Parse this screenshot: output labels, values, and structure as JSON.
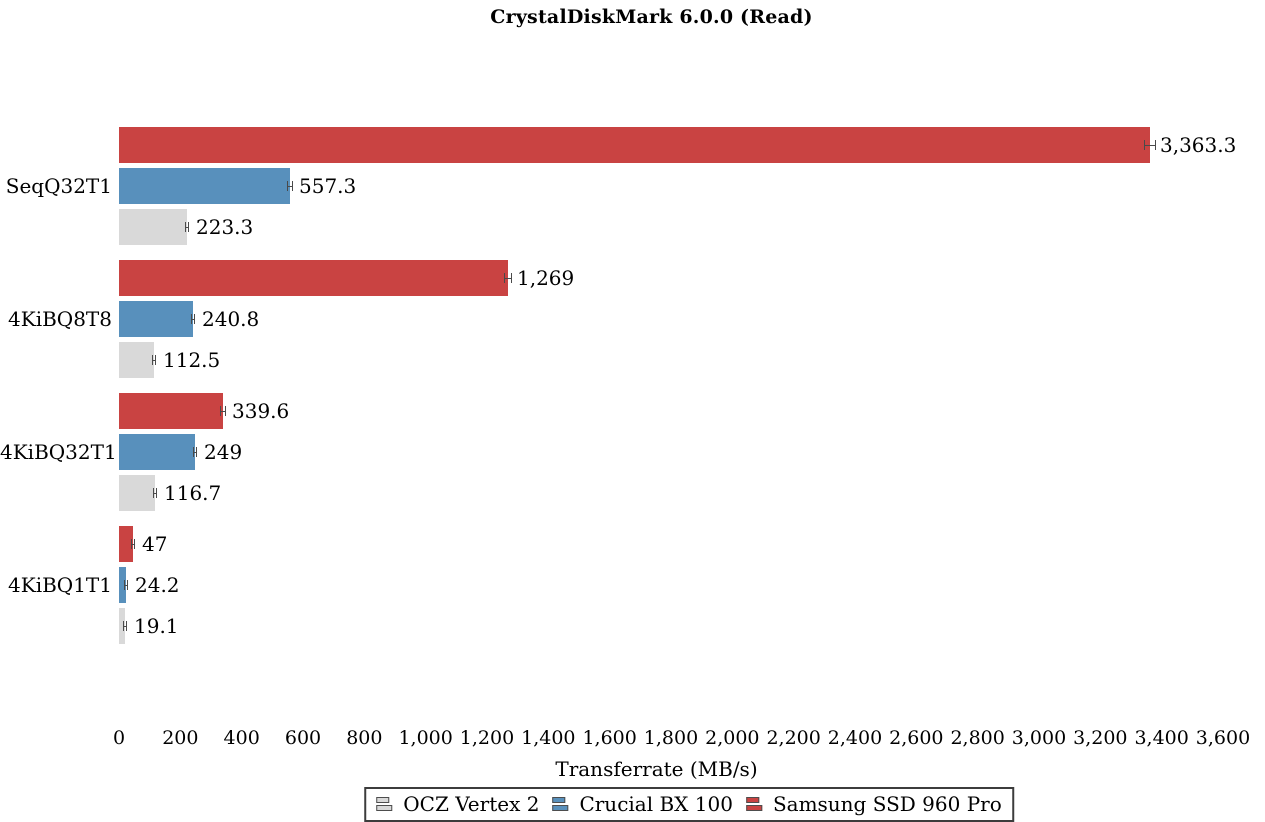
{
  "page": {
    "background": "#ffffff",
    "text_color": "#000000"
  },
  "chart_data": {
    "type": "bar",
    "orientation": "horizontal",
    "title": "CrystalDiskMark 6.0.0 (Read)",
    "xlabel": "Transferrate (MB/s)",
    "xlim": [
      0,
      3600
    ],
    "tick_step": 200,
    "tick_labels": [
      "0",
      "200",
      "400",
      "600",
      "800",
      "1,000",
      "1,200",
      "1,400",
      "1,600",
      "1,800",
      "2,000",
      "2,200",
      "2,400",
      "2,600",
      "2,800",
      "3,000",
      "3,200",
      "3,400",
      "3,600"
    ],
    "grid": false,
    "legend_position": "bottom-center",
    "categories": [
      "SeqQ32T1",
      "4KiBQ8T8",
      "4KiBQ32T1",
      "4KiBQ1T1"
    ],
    "bar_order_top_to_bottom": [
      "Samsung SSD 960 Pro",
      "Crucial BX 100",
      "OCZ Vertex 2"
    ],
    "series": [
      {
        "name": "OCZ Vertex 2",
        "color": "#D9D9D9",
        "values": [
          223.3,
          112.5,
          116.7,
          19.1
        ],
        "value_labels": [
          "223.3",
          "112.5",
          "116.7",
          "19.1"
        ],
        "errors": [
          8,
          6,
          6,
          4
        ]
      },
      {
        "name": "Crucial BX 100",
        "color": "#5890BC",
        "values": [
          557.3,
          240.8,
          249,
          24.2
        ],
        "value_labels": [
          "557.3",
          "240.8",
          "249",
          "24.2"
        ],
        "errors": [
          10,
          8,
          8,
          7
        ]
      },
      {
        "name": "Samsung SSD 960 Pro",
        "color": "#C94342",
        "values": [
          3363.3,
          1269,
          339.6,
          47
        ],
        "value_labels": [
          "3,363.3",
          "1,269",
          "339.6",
          "47"
        ],
        "errors": [
          20,
          12,
          9,
          6
        ]
      }
    ],
    "error_bar_color": "#4a4a4a"
  }
}
